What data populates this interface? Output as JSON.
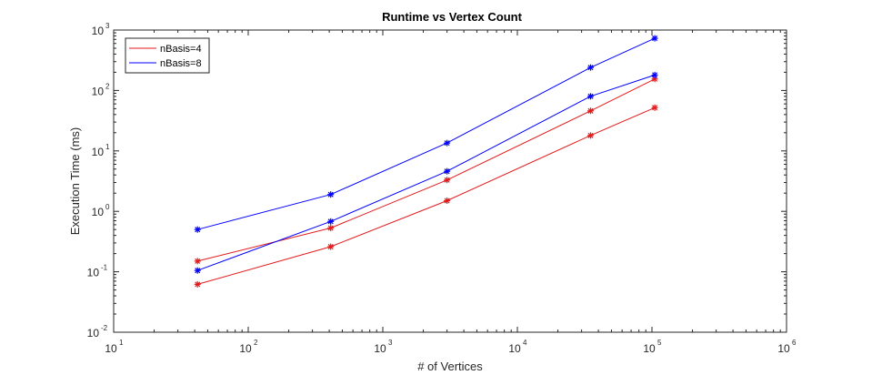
{
  "chart_data": {
    "type": "line",
    "title": "Runtime vs Vertex Count",
    "xlabel": "# of Vertices",
    "ylabel": "Execution Time (ms)",
    "xscale": "log",
    "yscale": "log",
    "xlim": [
      10,
      1000000
    ],
    "ylim": [
      0.01,
      1000
    ],
    "x_ticks": [
      {
        "base": "10",
        "exp": "1"
      },
      {
        "base": "10",
        "exp": "2"
      },
      {
        "base": "10",
        "exp": "3"
      },
      {
        "base": "10",
        "exp": "4"
      },
      {
        "base": "10",
        "exp": "5"
      },
      {
        "base": "10",
        "exp": "6"
      }
    ],
    "y_ticks": [
      {
        "base": "10",
        "exp": "-2"
      },
      {
        "base": "10",
        "exp": "-1"
      },
      {
        "base": "10",
        "exp": "0"
      },
      {
        "base": "10",
        "exp": "1"
      },
      {
        "base": "10",
        "exp": "2"
      },
      {
        "base": "10",
        "exp": "3"
      }
    ],
    "x": [
      42,
      410,
      3000,
      35000,
      105000
    ],
    "series": [
      {
        "name": "nBasis=4",
        "color": "#e31a1c",
        "marker": "asterisk",
        "values": [
          0.15,
          0.53,
          3.3,
          46,
          155
        ]
      },
      {
        "name": "",
        "color": "#e31a1c",
        "marker": "asterisk",
        "values": [
          0.062,
          0.26,
          1.5,
          18,
          52
        ]
      },
      {
        "name": "nBasis=8",
        "color": "#0000ff",
        "marker": "asterisk",
        "values": [
          0.5,
          1.9,
          13.5,
          240,
          730
        ]
      },
      {
        "name": "",
        "color": "#0000ff",
        "marker": "asterisk",
        "values": [
          0.105,
          0.68,
          4.6,
          80,
          180
        ]
      }
    ],
    "legend": {
      "position": "top-left",
      "entries": [
        {
          "label": "nBasis=4",
          "color": "#e31a1c"
        },
        {
          "label": "nBasis=8",
          "color": "#0000ff"
        }
      ]
    },
    "grid": false
  }
}
